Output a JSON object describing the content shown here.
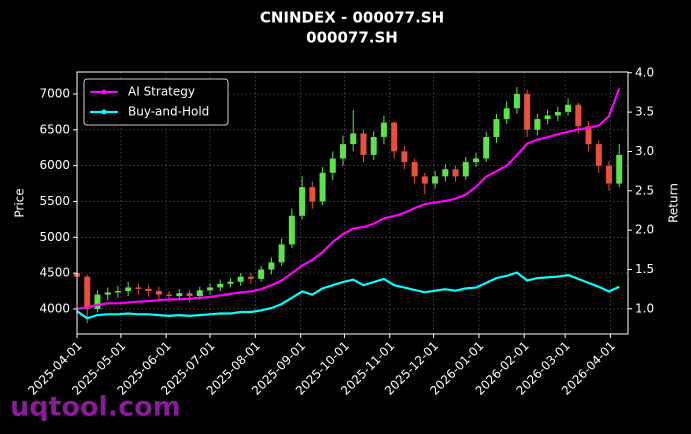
{
  "chart_data": {
    "type": "candlestick",
    "title": "CNINDEX - 000077.SH",
    "subtitle": "000077.SH",
    "ylabel": "Price",
    "y2label": "Return",
    "watermark": "uqtool.com",
    "up_color": "#5ce24a",
    "down_color": "#e8503c",
    "grid": true,
    "legend": "upper left",
    "xlim": [
      "2025-04-01",
      "2026-04-13"
    ],
    "xticks": [
      "2025-04-01",
      "2025-05-01",
      "2025-06-01",
      "2025-07-01",
      "2025-08-01",
      "2025-09-01",
      "2025-10-01",
      "2025-11-01",
      "2025-12-01",
      "2026-01-01",
      "2026-02-01",
      "2026-03-01",
      "2026-04-01"
    ],
    "ylim": [
      3650,
      7307
    ],
    "yticks": [
      4000,
      4500,
      5000,
      5500,
      6000,
      6500,
      7000
    ],
    "y2lim": [
      0.68,
      4.01
    ],
    "y2ticks": [
      {
        "value": 1,
        "label": "1.0"
      },
      {
        "value": 1.5,
        "label": "1.5"
      },
      {
        "value": 2,
        "label": "2.0"
      },
      {
        "value": 2.5,
        "label": "2.5"
      },
      {
        "value": 3,
        "label": "3.0"
      },
      {
        "value": 3.5,
        "label": "3.5"
      },
      {
        "value": 4,
        "label": "4.0"
      }
    ],
    "x": [
      "2025-04-01",
      "2025-04-08",
      "2025-04-15",
      "2025-04-22",
      "2025-04-29",
      "2025-05-06",
      "2025-05-13",
      "2025-05-20",
      "2025-05-27",
      "2025-06-03",
      "2025-06-10",
      "2025-06-17",
      "2025-06-24",
      "2025-07-01",
      "2025-07-08",
      "2025-07-15",
      "2025-07-22",
      "2025-07-29",
      "2025-08-05",
      "2025-08-12",
      "2025-08-19",
      "2025-08-26",
      "2025-09-02",
      "2025-09-09",
      "2025-09-16",
      "2025-09-23",
      "2025-09-30",
      "2025-10-07",
      "2025-10-14",
      "2025-10-21",
      "2025-10-28",
      "2025-11-04",
      "2025-11-11",
      "2025-11-18",
      "2025-11-25",
      "2025-12-02",
      "2025-12-09",
      "2025-12-16",
      "2025-12-23",
      "2025-12-30",
      "2026-01-06",
      "2026-01-13",
      "2026-01-20",
      "2026-01-27",
      "2026-02-03",
      "2026-02-10",
      "2026-02-17",
      "2026-02-24",
      "2026-03-03",
      "2026-03-10",
      "2026-03-17",
      "2026-03-24",
      "2026-03-31",
      "2026-04-07"
    ],
    "open": [
      4500,
      4450,
      4000,
      4200,
      4230,
      4250,
      4300,
      4280,
      4250,
      4200,
      4180,
      4220,
      4180,
      4260,
      4300,
      4350,
      4380,
      4450,
      4420,
      4550,
      4650,
      4900,
      5300,
      5700,
      5500,
      5900,
      6100,
      6300,
      6450,
      6150,
      6400,
      6600,
      6200,
      6050,
      5850,
      5750,
      5850,
      5950,
      5850,
      6050,
      6100,
      6400,
      6650,
      6800,
      7000,
      6500,
      6650,
      6700,
      6750,
      6850,
      6550,
      6300,
      6000,
      5750
    ],
    "high": [
      4560,
      4480,
      4260,
      4300,
      4320,
      4380,
      4360,
      4330,
      4310,
      4250,
      4280,
      4260,
      4310,
      4360,
      4410,
      4430,
      4500,
      4500,
      4600,
      4720,
      4980,
      5400,
      5850,
      5780,
      5980,
      6200,
      6420,
      6780,
      6500,
      6480,
      6700,
      6620,
      6280,
      6100,
      5900,
      5930,
      6020,
      6000,
      6120,
      6180,
      6470,
      6720,
      6900,
      7100,
      7060,
      6720,
      6780,
      6820,
      6940,
      6880,
      6620,
      6350,
      6060,
      6300
    ],
    "low": [
      4380,
      3800,
      3950,
      4120,
      4150,
      4180,
      4200,
      4170,
      4120,
      4100,
      4120,
      4100,
      4130,
      4200,
      4250,
      4300,
      4320,
      4350,
      4380,
      4480,
      4600,
      4850,
      5250,
      5400,
      5450,
      5800,
      6000,
      6200,
      6050,
      6080,
      6300,
      6100,
      5950,
      5750,
      5600,
      5680,
      5780,
      5780,
      5800,
      5980,
      6050,
      6320,
      6580,
      6720,
      6400,
      6420,
      6580,
      6620,
      6700,
      6450,
      6200,
      5900,
      5650,
      5700
    ],
    "close": [
      4450,
      4000,
      4200,
      4230,
      4250,
      4300,
      4280,
      4250,
      4200,
      4180,
      4220,
      4180,
      4260,
      4300,
      4350,
      4380,
      4450,
      4420,
      4550,
      4650,
      4900,
      5300,
      5700,
      5500,
      5900,
      6100,
      6300,
      6450,
      6150,
      6400,
      6600,
      6200,
      6050,
      5850,
      5750,
      5850,
      5950,
      5850,
      6050,
      6100,
      6400,
      6650,
      6800,
      7000,
      6500,
      6650,
      6700,
      6750,
      6850,
      6550,
      6300,
      6000,
      5750,
      6150
    ],
    "series": [
      {
        "name": "AI Strategy",
        "color": "#ff00ff",
        "axis": "y2",
        "values": [
          1.0,
          1.02,
          1.05,
          1.07,
          1.07,
          1.08,
          1.09,
          1.1,
          1.11,
          1.12,
          1.12,
          1.13,
          1.14,
          1.15,
          1.17,
          1.19,
          1.21,
          1.22,
          1.25,
          1.3,
          1.36,
          1.45,
          1.55,
          1.62,
          1.72,
          1.85,
          1.95,
          2.02,
          2.04,
          2.08,
          2.15,
          2.18,
          2.22,
          2.28,
          2.33,
          2.35,
          2.37,
          2.4,
          2.45,
          2.55,
          2.68,
          2.75,
          2.82,
          2.95,
          3.1,
          3.15,
          3.18,
          3.22,
          3.25,
          3.28,
          3.3,
          3.33,
          3.45,
          3.8
        ]
      },
      {
        "name": "Buy-and-Hold",
        "color": "#00ffff",
        "axis": "y2",
        "values": [
          0.97,
          0.88,
          0.92,
          0.93,
          0.93,
          0.94,
          0.93,
          0.93,
          0.92,
          0.91,
          0.92,
          0.91,
          0.92,
          0.93,
          0.94,
          0.94,
          0.96,
          0.96,
          0.98,
          1.01,
          1.06,
          1.14,
          1.22,
          1.18,
          1.26,
          1.3,
          1.34,
          1.37,
          1.3,
          1.34,
          1.38,
          1.3,
          1.27,
          1.24,
          1.21,
          1.23,
          1.25,
          1.23,
          1.26,
          1.27,
          1.33,
          1.39,
          1.42,
          1.46,
          1.36,
          1.39,
          1.4,
          1.41,
          1.43,
          1.38,
          1.33,
          1.28,
          1.22,
          1.28
        ]
      }
    ]
  }
}
